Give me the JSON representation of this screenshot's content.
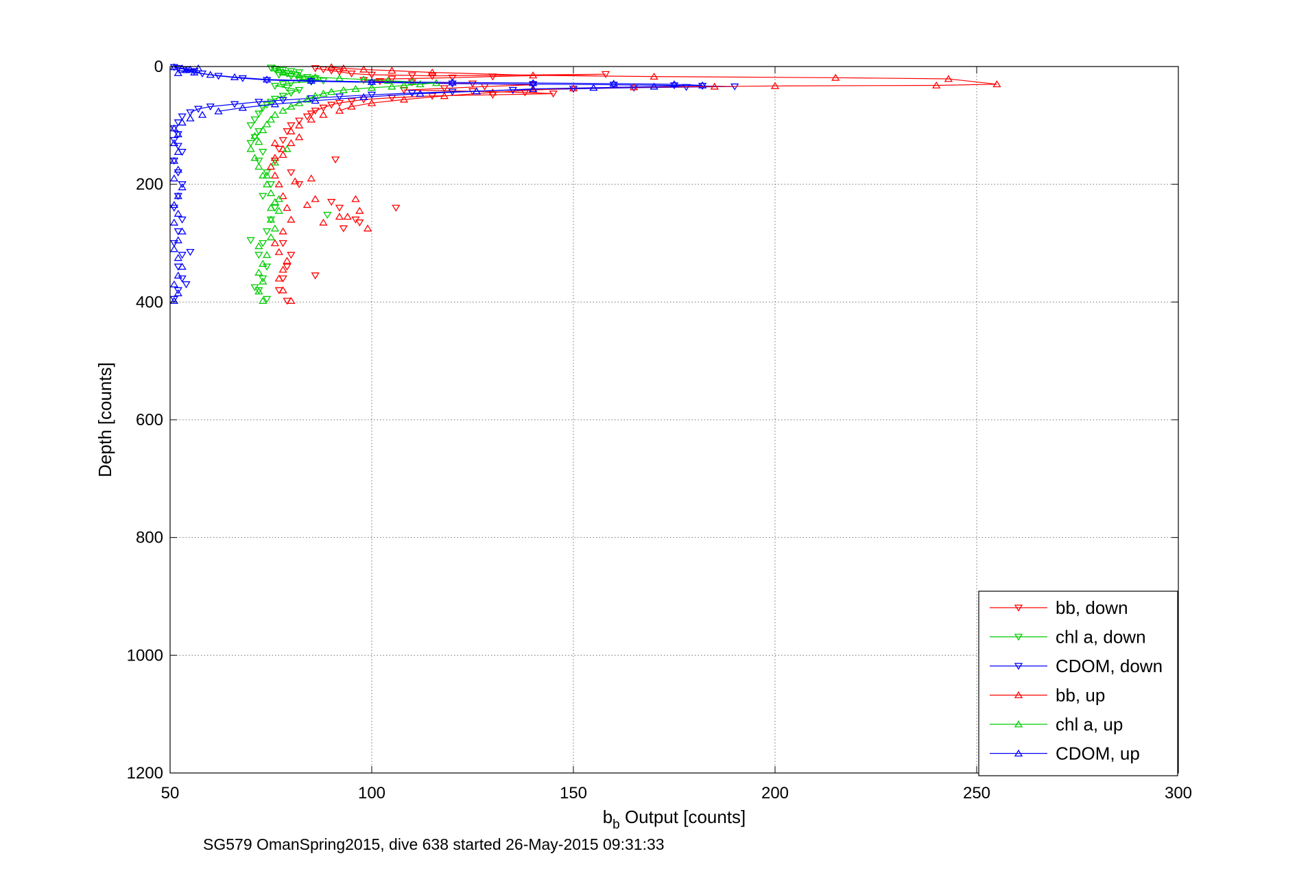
{
  "chart_data": {
    "type": "scatter",
    "xlabel_main": "b",
    "xlabel_sub": "b",
    "xlabel_rest": " Output [counts]",
    "ylabel": "Depth [counts]",
    "caption": "SG579 OmanSpring2015, dive 638 started 26-May-2015 09:31:33",
    "xlim": [
      50,
      300
    ],
    "ylim": [
      0,
      1200
    ],
    "y_reversed": true,
    "x_ticks": [
      50,
      100,
      150,
      200,
      250,
      300
    ],
    "x_tick_labels": [
      "50",
      "100",
      "150",
      "200",
      "250",
      "300"
    ],
    "y_ticks": [
      0,
      200,
      400,
      600,
      800,
      1000,
      1200
    ],
    "y_tick_labels": [
      "0",
      "200",
      "400",
      "600",
      "800",
      "1000",
      "1200"
    ],
    "grid": true,
    "legend_position": "bottom-right",
    "series": [
      {
        "name": "bb, down",
        "color": "#ff0000",
        "marker": "triangle-down",
        "points": [
          [
            86,
            3
          ],
          [
            88,
            5
          ],
          [
            90,
            7
          ],
          [
            92,
            9
          ],
          [
            95,
            12
          ],
          [
            100,
            14
          ],
          [
            110,
            15
          ],
          [
            115,
            16
          ],
          [
            158,
            13
          ],
          [
            130,
            17
          ],
          [
            120,
            19
          ],
          [
            105,
            21
          ],
          [
            98,
            23
          ],
          [
            102,
            25
          ],
          [
            110,
            27
          ],
          [
            125,
            29
          ],
          [
            140,
            31
          ],
          [
            128,
            34
          ],
          [
            118,
            37
          ],
          [
            108,
            40
          ],
          [
            125,
            42
          ],
          [
            138,
            44
          ],
          [
            145,
            46
          ],
          [
            130,
            48
          ],
          [
            115,
            50
          ],
          [
            105,
            53
          ],
          [
            98,
            56
          ],
          [
            95,
            59
          ],
          [
            92,
            62
          ],
          [
            90,
            65
          ],
          [
            88,
            70
          ],
          [
            86,
            75
          ],
          [
            85,
            80
          ],
          [
            84,
            85
          ],
          [
            82,
            92
          ],
          [
            80,
            100
          ],
          [
            79,
            110
          ],
          [
            78,
            125
          ],
          [
            77,
            140
          ],
          [
            76,
            160
          ],
          [
            80,
            180
          ],
          [
            82,
            200
          ],
          [
            90,
            230
          ],
          [
            92,
            240
          ],
          [
            96,
            260
          ],
          [
            93,
            275
          ],
          [
            78,
            300
          ],
          [
            80,
            320
          ],
          [
            79,
            340
          ],
          [
            78,
            360
          ],
          [
            77,
            380
          ],
          [
            79,
            398
          ],
          [
            86,
            355
          ],
          [
            97,
            265
          ],
          [
            106,
            240
          ],
          [
            91,
            158
          ]
        ]
      },
      {
        "name": "chl a, down",
        "color": "#00cc00",
        "marker": "triangle-down",
        "points": [
          [
            75,
            2
          ],
          [
            76,
            4
          ],
          [
            78,
            6
          ],
          [
            80,
            8
          ],
          [
            82,
            10
          ],
          [
            79,
            12
          ],
          [
            77,
            14
          ],
          [
            80,
            16
          ],
          [
            84,
            18
          ],
          [
            86,
            20
          ],
          [
            82,
            22
          ],
          [
            88,
            24
          ],
          [
            85,
            26
          ],
          [
            80,
            28
          ],
          [
            78,
            30
          ],
          [
            76,
            33
          ],
          [
            79,
            36
          ],
          [
            82,
            40
          ],
          [
            80,
            45
          ],
          [
            78,
            50
          ],
          [
            76,
            55
          ],
          [
            75,
            60
          ],
          [
            74,
            65
          ],
          [
            73,
            70
          ],
          [
            72,
            80
          ],
          [
            71,
            90
          ],
          [
            70,
            100
          ],
          [
            72,
            110
          ],
          [
            71,
            120
          ],
          [
            70,
            130
          ],
          [
            73,
            145
          ],
          [
            72,
            160
          ],
          [
            74,
            180
          ],
          [
            75,
            200
          ],
          [
            73,
            220
          ],
          [
            76,
            240
          ],
          [
            75,
            260
          ],
          [
            74,
            280
          ],
          [
            73,
            300
          ],
          [
            72,
            320
          ],
          [
            74,
            340
          ],
          [
            73,
            360
          ],
          [
            72,
            380
          ],
          [
            74,
            395
          ],
          [
            71,
            375
          ],
          [
            70,
            295
          ],
          [
            89,
            252
          ]
        ]
      },
      {
        "name": "CDOM, down",
        "color": "#0000ff",
        "marker": "triangle-down",
        "points": [
          [
            51,
            1
          ],
          [
            52,
            3
          ],
          [
            54,
            5
          ],
          [
            56,
            8
          ],
          [
            58,
            12
          ],
          [
            62,
            16
          ],
          [
            68,
            20
          ],
          [
            74,
            23
          ],
          [
            85,
            25
          ],
          [
            100,
            27
          ],
          [
            120,
            29
          ],
          [
            140,
            30
          ],
          [
            160,
            31
          ],
          [
            175,
            32
          ],
          [
            182,
            33
          ],
          [
            190,
            34
          ],
          [
            178,
            35
          ],
          [
            165,
            36
          ],
          [
            150,
            38
          ],
          [
            135,
            40
          ],
          [
            120,
            43
          ],
          [
            110,
            45
          ],
          [
            100,
            48
          ],
          [
            92,
            51
          ],
          [
            85,
            54
          ],
          [
            78,
            57
          ],
          [
            72,
            60
          ],
          [
            66,
            64
          ],
          [
            60,
            68
          ],
          [
            57,
            72
          ],
          [
            55,
            78
          ],
          [
            53,
            85
          ],
          [
            52,
            95
          ],
          [
            51,
            105
          ],
          [
            52,
            115
          ],
          [
            51,
            125
          ],
          [
            52,
            135
          ],
          [
            53,
            145
          ],
          [
            51,
            160
          ],
          [
            52,
            180
          ],
          [
            53,
            200
          ],
          [
            52,
            220
          ],
          [
            51,
            240
          ],
          [
            53,
            260
          ],
          [
            52,
            280
          ],
          [
            51,
            300
          ],
          [
            53,
            320
          ],
          [
            52,
            340
          ],
          [
            53,
            360
          ],
          [
            52,
            380
          ],
          [
            51,
            395
          ],
          [
            55,
            315
          ],
          [
            54,
            370
          ]
        ]
      },
      {
        "name": "bb, up",
        "color": "#ff0000",
        "marker": "triangle-up",
        "points": [
          [
            80,
            398
          ],
          [
            78,
            380
          ],
          [
            77,
            360
          ],
          [
            78,
            345
          ],
          [
            79,
            330
          ],
          [
            77,
            315
          ],
          [
            76,
            300
          ],
          [
            78,
            280
          ],
          [
            80,
            260
          ],
          [
            79,
            240
          ],
          [
            78,
            220
          ],
          [
            77,
            200
          ],
          [
            76,
            185
          ],
          [
            75,
            170
          ],
          [
            76,
            155
          ],
          [
            78,
            140
          ],
          [
            80,
            130
          ],
          [
            82,
            120
          ],
          [
            80,
            110
          ],
          [
            82,
            100
          ],
          [
            85,
            90
          ],
          [
            88,
            82
          ],
          [
            92,
            75
          ],
          [
            95,
            68
          ],
          [
            100,
            62
          ],
          [
            108,
            56
          ],
          [
            118,
            50
          ],
          [
            130,
            44
          ],
          [
            140,
            40
          ],
          [
            150,
            37
          ],
          [
            165,
            35
          ],
          [
            185,
            34
          ],
          [
            200,
            33
          ],
          [
            240,
            32
          ],
          [
            255,
            30
          ],
          [
            243,
            21
          ],
          [
            215,
            19
          ],
          [
            170,
            17
          ],
          [
            140,
            15
          ],
          [
            115,
            10
          ],
          [
            105,
            7
          ],
          [
            98,
            5
          ],
          [
            93,
            3
          ],
          [
            90,
            1
          ],
          [
            85,
            190
          ],
          [
            88,
            265
          ],
          [
            92,
            255
          ],
          [
            97,
            245
          ],
          [
            84,
            235
          ],
          [
            86,
            225
          ],
          [
            96,
            225
          ],
          [
            99,
            275
          ],
          [
            94,
            255
          ],
          [
            81,
            195
          ],
          [
            78,
            150
          ],
          [
            76,
            130
          ]
        ]
      },
      {
        "name": "chl a, up",
        "color": "#00cc00",
        "marker": "triangle-up",
        "points": [
          [
            73,
            398
          ],
          [
            72,
            382
          ],
          [
            73,
            365
          ],
          [
            72,
            350
          ],
          [
            73,
            335
          ],
          [
            74,
            320
          ],
          [
            72,
            305
          ],
          [
            75,
            290
          ],
          [
            76,
            275
          ],
          [
            75,
            260
          ],
          [
            77,
            245
          ],
          [
            76,
            230
          ],
          [
            75,
            215
          ],
          [
            74,
            200
          ],
          [
            73,
            185
          ],
          [
            72,
            170
          ],
          [
            71,
            155
          ],
          [
            70,
            140
          ],
          [
            72,
            128
          ],
          [
            71,
            118
          ],
          [
            73,
            108
          ],
          [
            74,
            98
          ],
          [
            75,
            90
          ],
          [
            76,
            82
          ],
          [
            78,
            75
          ],
          [
            80,
            68
          ],
          [
            82,
            62
          ],
          [
            84,
            56
          ],
          [
            86,
            50
          ],
          [
            88,
            46
          ],
          [
            90,
            43
          ],
          [
            93,
            40
          ],
          [
            96,
            38
          ],
          [
            100,
            36
          ],
          [
            105,
            34
          ],
          [
            108,
            32
          ],
          [
            112,
            30
          ],
          [
            116,
            28
          ],
          [
            110,
            26
          ],
          [
            104,
            24
          ],
          [
            98,
            22
          ],
          [
            92,
            20
          ],
          [
            86,
            18
          ],
          [
            82,
            15
          ],
          [
            80,
            12
          ],
          [
            78,
            9
          ],
          [
            77,
            6
          ],
          [
            76,
            3
          ],
          [
            79,
            140
          ],
          [
            76,
            163
          ],
          [
            74,
            185
          ],
          [
            77,
            225
          ],
          [
            75,
            240
          ]
        ]
      },
      {
        "name": "CDOM, up",
        "color": "#0000ff",
        "marker": "triangle-up",
        "points": [
          [
            51,
            398
          ],
          [
            52,
            385
          ],
          [
            51,
            370
          ],
          [
            52,
            355
          ],
          [
            53,
            340
          ],
          [
            52,
            325
          ],
          [
            51,
            310
          ],
          [
            52,
            295
          ],
          [
            53,
            280
          ],
          [
            51,
            265
          ],
          [
            52,
            250
          ],
          [
            51,
            235
          ],
          [
            52,
            220
          ],
          [
            53,
            205
          ],
          [
            51,
            190
          ],
          [
            52,
            175
          ],
          [
            51,
            160
          ],
          [
            52,
            145
          ],
          [
            51,
            130
          ],
          [
            52,
            115
          ],
          [
            51,
            105
          ],
          [
            53,
            95
          ],
          [
            55,
            88
          ],
          [
            58,
            82
          ],
          [
            62,
            76
          ],
          [
            68,
            70
          ],
          [
            76,
            64
          ],
          [
            86,
            58
          ],
          [
            98,
            52
          ],
          [
            112,
            46
          ],
          [
            126,
            42
          ],
          [
            140,
            38
          ],
          [
            155,
            36
          ],
          [
            170,
            34
          ],
          [
            182,
            32
          ],
          [
            175,
            30
          ],
          [
            160,
            29
          ],
          [
            140,
            28
          ],
          [
            120,
            27
          ],
          [
            100,
            26
          ],
          [
            85,
            24
          ],
          [
            74,
            22
          ],
          [
            66,
            18
          ],
          [
            60,
            14
          ],
          [
            56,
            10
          ],
          [
            54,
            6
          ],
          [
            53,
            3
          ],
          [
            51,
            1
          ],
          [
            55,
            5
          ],
          [
            57,
            3
          ],
          [
            52,
            11
          ]
        ]
      }
    ]
  }
}
